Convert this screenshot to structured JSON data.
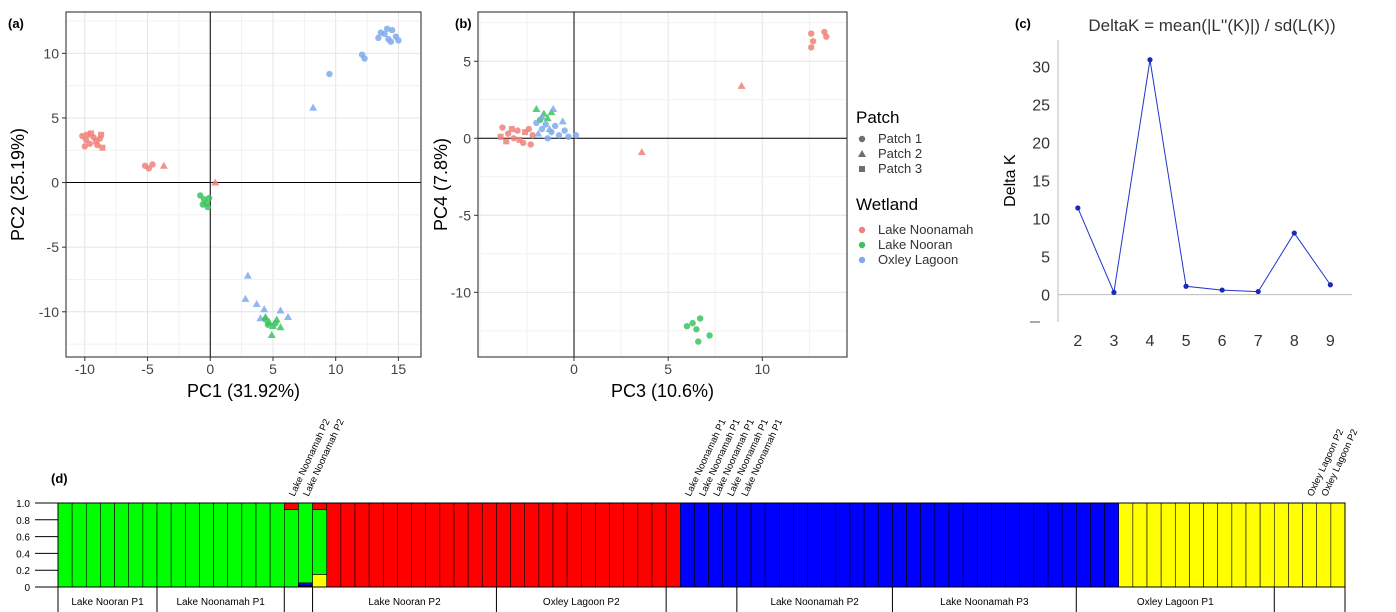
{
  "colors": {
    "lake_noonamah": "#F08078",
    "lake_nooran": "#3CC35F",
    "oxley_lagoon": "#7EAAEB",
    "deltak_line": "#2233CC",
    "structure_green": "#00FF00",
    "structure_red": "#FF0000",
    "structure_blue": "#0000FF",
    "structure_yellow": "#FFFF00"
  },
  "panels": {
    "a": "(a)",
    "b": "(b)",
    "c": "(c)",
    "d": "(d)"
  },
  "legend": {
    "patch_title": "Patch",
    "patch_items": [
      {
        "label": "Patch 1",
        "shape": "circle"
      },
      {
        "label": "Patch 2",
        "shape": "triangle"
      },
      {
        "label": "Patch 3",
        "shape": "square"
      }
    ],
    "wetland_title": "Wetland",
    "wetland_items": [
      {
        "label": "Lake Noonamah",
        "color": "#F08078"
      },
      {
        "label": "Lake Nooran",
        "color": "#3CC35F"
      },
      {
        "label": "Oxley Lagoon",
        "color": "#7EAAEB"
      }
    ]
  },
  "chart_data": [
    {
      "panel": "(a)",
      "type": "scatter",
      "xlabel": "PC1 (31.92%)",
      "ylabel": "PC2 (25.19%)",
      "xlim": [
        -11.5,
        16.8
      ],
      "ylim": [
        -13.5,
        13.2
      ],
      "xticks": [
        -10,
        -5,
        0,
        5,
        10,
        15
      ],
      "yticks": [
        -10,
        -5,
        0,
        5,
        10
      ],
      "grid": true,
      "points": [
        {
          "x": -10.2,
          "y": 3.6,
          "w": "noonamah",
          "p": "circle"
        },
        {
          "x": -9.9,
          "y": 3.3,
          "w": "noonamah",
          "p": "circle"
        },
        {
          "x": -9.6,
          "y": 3.0,
          "w": "noonamah",
          "p": "circle"
        },
        {
          "x": -9.3,
          "y": 3.5,
          "w": "noonamah",
          "p": "circle"
        },
        {
          "x": -9.0,
          "y": 2.9,
          "w": "noonamah",
          "p": "circle"
        },
        {
          "x": -8.8,
          "y": 3.4,
          "w": "noonamah",
          "p": "circle"
        },
        {
          "x": -10.0,
          "y": 2.8,
          "w": "noonamah",
          "p": "circle"
        },
        {
          "x": -9.5,
          "y": 3.8,
          "w": "noonamah",
          "p": "square"
        },
        {
          "x": -9.1,
          "y": 3.2,
          "w": "noonamah",
          "p": "square"
        },
        {
          "x": -8.6,
          "y": 2.7,
          "w": "noonamah",
          "p": "square"
        },
        {
          "x": -8.7,
          "y": 3.7,
          "w": "noonamah",
          "p": "square"
        },
        {
          "x": -9.8,
          "y": 3.7,
          "w": "noonamah",
          "p": "square"
        },
        {
          "x": -5.2,
          "y": 1.3,
          "w": "noonamah",
          "p": "circle"
        },
        {
          "x": -4.9,
          "y": 1.1,
          "w": "noonamah",
          "p": "circle"
        },
        {
          "x": -4.6,
          "y": 1.4,
          "w": "noonamah",
          "p": "circle"
        },
        {
          "x": -3.7,
          "y": 1.3,
          "w": "noonamah",
          "p": "triangle"
        },
        {
          "x": 0.4,
          "y": 0.0,
          "w": "noonamah",
          "p": "triangle"
        },
        {
          "x": -0.8,
          "y": -1.0,
          "w": "nooran",
          "p": "circle"
        },
        {
          "x": -0.5,
          "y": -1.3,
          "w": "nooran",
          "p": "circle"
        },
        {
          "x": -0.3,
          "y": -1.6,
          "w": "nooran",
          "p": "circle"
        },
        {
          "x": -0.1,
          "y": -1.2,
          "w": "nooran",
          "p": "circle"
        },
        {
          "x": -0.6,
          "y": -1.7,
          "w": "nooran",
          "p": "circle"
        },
        {
          "x": -0.2,
          "y": -1.9,
          "w": "nooran",
          "p": "circle"
        },
        {
          "x": 8.2,
          "y": 5.8,
          "w": "oxley",
          "p": "triangle"
        },
        {
          "x": 9.5,
          "y": 8.4,
          "w": "oxley",
          "p": "circle"
        },
        {
          "x": 12.1,
          "y": 9.9,
          "w": "oxley",
          "p": "circle"
        },
        {
          "x": 12.3,
          "y": 9.6,
          "w": "oxley",
          "p": "circle"
        },
        {
          "x": 13.4,
          "y": 11.2,
          "w": "oxley",
          "p": "circle"
        },
        {
          "x": 13.9,
          "y": 11.5,
          "w": "oxley",
          "p": "circle"
        },
        {
          "x": 14.2,
          "y": 11.1,
          "w": "oxley",
          "p": "circle"
        },
        {
          "x": 14.5,
          "y": 11.8,
          "w": "oxley",
          "p": "circle"
        },
        {
          "x": 14.8,
          "y": 11.3,
          "w": "oxley",
          "p": "circle"
        },
        {
          "x": 14.4,
          "y": 10.9,
          "w": "oxley",
          "p": "circle"
        },
        {
          "x": 13.6,
          "y": 11.6,
          "w": "oxley",
          "p": "circle"
        },
        {
          "x": 14.1,
          "y": 11.9,
          "w": "oxley",
          "p": "circle"
        },
        {
          "x": 15.0,
          "y": 11.0,
          "w": "oxley",
          "p": "circle"
        },
        {
          "x": 3.0,
          "y": -7.2,
          "w": "oxley",
          "p": "triangle"
        },
        {
          "x": 2.8,
          "y": -9.0,
          "w": "oxley",
          "p": "triangle"
        },
        {
          "x": 3.7,
          "y": -9.4,
          "w": "oxley",
          "p": "triangle"
        },
        {
          "x": 4.3,
          "y": -9.8,
          "w": "oxley",
          "p": "triangle"
        },
        {
          "x": 5.6,
          "y": -9.9,
          "w": "oxley",
          "p": "triangle"
        },
        {
          "x": 6.2,
          "y": -10.4,
          "w": "oxley",
          "p": "triangle"
        },
        {
          "x": 4.0,
          "y": -10.5,
          "w": "oxley",
          "p": "triangle"
        },
        {
          "x": 4.4,
          "y": -10.4,
          "w": "nooran",
          "p": "triangle"
        },
        {
          "x": 4.7,
          "y": -10.8,
          "w": "nooran",
          "p": "triangle"
        },
        {
          "x": 5.0,
          "y": -11.1,
          "w": "nooran",
          "p": "triangle"
        },
        {
          "x": 5.3,
          "y": -10.6,
          "w": "nooran",
          "p": "triangle"
        },
        {
          "x": 4.9,
          "y": -11.8,
          "w": "nooran",
          "p": "triangle"
        },
        {
          "x": 5.6,
          "y": -11.2,
          "w": "nooran",
          "p": "triangle"
        },
        {
          "x": 4.6,
          "y": -11.0,
          "w": "nooran",
          "p": "circle"
        },
        {
          "x": 5.2,
          "y": -10.9,
          "w": "nooran",
          "p": "circle"
        },
        {
          "x": 4.4,
          "y": -10.6,
          "w": "nooran",
          "p": "circle"
        }
      ]
    },
    {
      "panel": "(b)",
      "type": "scatter",
      "xlabel": "PC3 (10.6%)",
      "ylabel": "PC4 (7.8%)",
      "xlim": [
        -5.1,
        14.5
      ],
      "ylim": [
        -14.2,
        8.2
      ],
      "xticks": [
        0,
        5,
        10
      ],
      "yticks": [
        -10,
        -5,
        0,
        5
      ],
      "grid": true,
      "points": [
        {
          "x": -3.8,
          "y": 0.7,
          "w": "noonamah",
          "p": "circle"
        },
        {
          "x": -3.5,
          "y": 0.3,
          "w": "noonamah",
          "p": "circle"
        },
        {
          "x": -3.2,
          "y": 0.0,
          "w": "noonamah",
          "p": "circle"
        },
        {
          "x": -3.0,
          "y": 0.5,
          "w": "noonamah",
          "p": "circle"
        },
        {
          "x": -2.7,
          "y": -0.3,
          "w": "noonamah",
          "p": "circle"
        },
        {
          "x": -2.4,
          "y": 0.6,
          "w": "noonamah",
          "p": "circle"
        },
        {
          "x": -2.2,
          "y": 0.2,
          "w": "noonamah",
          "p": "circle"
        },
        {
          "x": -3.6,
          "y": -0.2,
          "w": "noonamah",
          "p": "square"
        },
        {
          "x": -3.3,
          "y": 0.6,
          "w": "noonamah",
          "p": "square"
        },
        {
          "x": -2.9,
          "y": -0.1,
          "w": "noonamah",
          "p": "square"
        },
        {
          "x": -2.6,
          "y": 0.4,
          "w": "noonamah",
          "p": "square"
        },
        {
          "x": -3.9,
          "y": 0.1,
          "w": "noonamah",
          "p": "square"
        },
        {
          "x": -2.3,
          "y": -0.4,
          "w": "noonamah",
          "p": "circle"
        },
        {
          "x": 3.6,
          "y": -0.9,
          "w": "noonamah",
          "p": "triangle"
        },
        {
          "x": 8.9,
          "y": 3.4,
          "w": "noonamah",
          "p": "triangle"
        },
        {
          "x": 12.6,
          "y": 6.8,
          "w": "noonamah",
          "p": "circle"
        },
        {
          "x": 12.7,
          "y": 6.3,
          "w": "noonamah",
          "p": "circle"
        },
        {
          "x": 12.6,
          "y": 5.9,
          "w": "noonamah",
          "p": "circle"
        },
        {
          "x": 13.3,
          "y": 6.9,
          "w": "noonamah",
          "p": "circle"
        },
        {
          "x": 13.4,
          "y": 6.6,
          "w": "noonamah",
          "p": "circle"
        },
        {
          "x": -2.0,
          "y": 1.9,
          "w": "nooran",
          "p": "triangle"
        },
        {
          "x": -1.6,
          "y": 1.6,
          "w": "nooran",
          "p": "triangle"
        },
        {
          "x": -1.4,
          "y": 1.3,
          "w": "nooran",
          "p": "triangle"
        },
        {
          "x": -1.2,
          "y": 1.7,
          "w": "nooran",
          "p": "triangle"
        },
        {
          "x": -1.8,
          "y": 1.2,
          "w": "nooran",
          "p": "circle"
        },
        {
          "x": 6.0,
          "y": -12.2,
          "w": "nooran",
          "p": "circle"
        },
        {
          "x": 6.3,
          "y": -12.0,
          "w": "nooran",
          "p": "circle"
        },
        {
          "x": 6.5,
          "y": -12.4,
          "w": "nooran",
          "p": "circle"
        },
        {
          "x": 6.7,
          "y": -11.7,
          "w": "nooran",
          "p": "circle"
        },
        {
          "x": 6.6,
          "y": -13.2,
          "w": "nooran",
          "p": "circle"
        },
        {
          "x": 7.2,
          "y": -12.8,
          "w": "nooran",
          "p": "circle"
        },
        {
          "x": -2.0,
          "y": 1.0,
          "w": "oxley",
          "p": "circle"
        },
        {
          "x": -1.7,
          "y": 0.6,
          "w": "oxley",
          "p": "circle"
        },
        {
          "x": -1.5,
          "y": 0.9,
          "w": "oxley",
          "p": "circle"
        },
        {
          "x": -1.2,
          "y": 0.4,
          "w": "oxley",
          "p": "circle"
        },
        {
          "x": -1.0,
          "y": 0.8,
          "w": "oxley",
          "p": "circle"
        },
        {
          "x": -0.8,
          "y": 0.2,
          "w": "oxley",
          "p": "circle"
        },
        {
          "x": -0.5,
          "y": 0.5,
          "w": "oxley",
          "p": "circle"
        },
        {
          "x": -0.3,
          "y": 0.1,
          "w": "oxley",
          "p": "circle"
        },
        {
          "x": 0.1,
          "y": 0.2,
          "w": "oxley",
          "p": "circle"
        },
        {
          "x": -1.4,
          "y": 0.0,
          "w": "oxley",
          "p": "circle"
        },
        {
          "x": -1.7,
          "y": 1.4,
          "w": "oxley",
          "p": "triangle"
        },
        {
          "x": -1.1,
          "y": 1.9,
          "w": "oxley",
          "p": "triangle"
        },
        {
          "x": -0.6,
          "y": 1.1,
          "w": "oxley",
          "p": "triangle"
        },
        {
          "x": -1.9,
          "y": 0.3,
          "w": "oxley",
          "p": "triangle"
        },
        {
          "x": -1.3,
          "y": 0.6,
          "w": "oxley",
          "p": "triangle"
        }
      ]
    },
    {
      "panel": "(c)",
      "type": "line",
      "title": "DeltaK = mean(|L''(K)|) / sd(L(K))",
      "ylabel": "Delta K",
      "x": [
        2,
        3,
        4,
        5,
        6,
        7,
        8,
        9
      ],
      "values": [
        11.4,
        0.3,
        30.9,
        1.1,
        0.6,
        0.4,
        8.1,
        1.3
      ],
      "yticks": [
        0,
        5,
        10,
        15,
        20,
        25,
        30
      ],
      "ylim": [
        -3.6,
        33.5
      ],
      "xlim": [
        1.45,
        9.6
      ]
    },
    {
      "panel": "(d)",
      "type": "bar",
      "stacked": true,
      "ylim": [
        0,
        1
      ],
      "yticks": [
        "0",
        "0.2",
        "0.4",
        "0.6",
        "0.8",
        "1.0"
      ],
      "bars": [
        {
          "c": "G",
          "n": 16
        },
        {
          "c": "G92R8",
          "n": 1
        },
        {
          "c": "YK02B03G95",
          "n": 1
        },
        {
          "c": "Y15G77R8",
          "n": 1
        },
        {
          "c": "R",
          "n": 25
        },
        {
          "c": "B",
          "n": 31
        },
        {
          "c": "Y",
          "n": 16
        }
      ],
      "groups": [
        {
          "label": "Lake Nooran P1",
          "n": 7
        },
        {
          "label": "Lake Noonamah P1",
          "n": 9
        },
        {
          "label": "",
          "n": 2
        },
        {
          "label": "Lake Nooran P2",
          "n": 13
        },
        {
          "label": "Oxley Lagoon P2",
          "n": 12
        },
        {
          "label": "",
          "n": 5
        },
        {
          "label": "Lake Noonamah P2",
          "n": 11
        },
        {
          "label": "Lake Noonamah P3",
          "n": 13
        },
        {
          "label": "Oxley Lagoon P1",
          "n": 14
        },
        {
          "label": "",
          "n": 2
        }
      ],
      "top_labels": [
        {
          "text": "Lake Noonamah P2",
          "bar": 16
        },
        {
          "text": "Lake Noonamah P2",
          "bar": 17
        },
        {
          "text": "Lake Noonamah P1",
          "bar": 44
        },
        {
          "text": "Lake Noonamah P1",
          "bar": 45
        },
        {
          "text": "Lake Noonamah P1",
          "bar": 46
        },
        {
          "text": "Lake Noonamah P1",
          "bar": 47
        },
        {
          "text": "Lake Noonamah P1",
          "bar": 48
        },
        {
          "text": "Oxley Lagoon P2",
          "bar": 88
        },
        {
          "text": "Oxley Lagoon P2",
          "bar": 89
        }
      ]
    }
  ]
}
